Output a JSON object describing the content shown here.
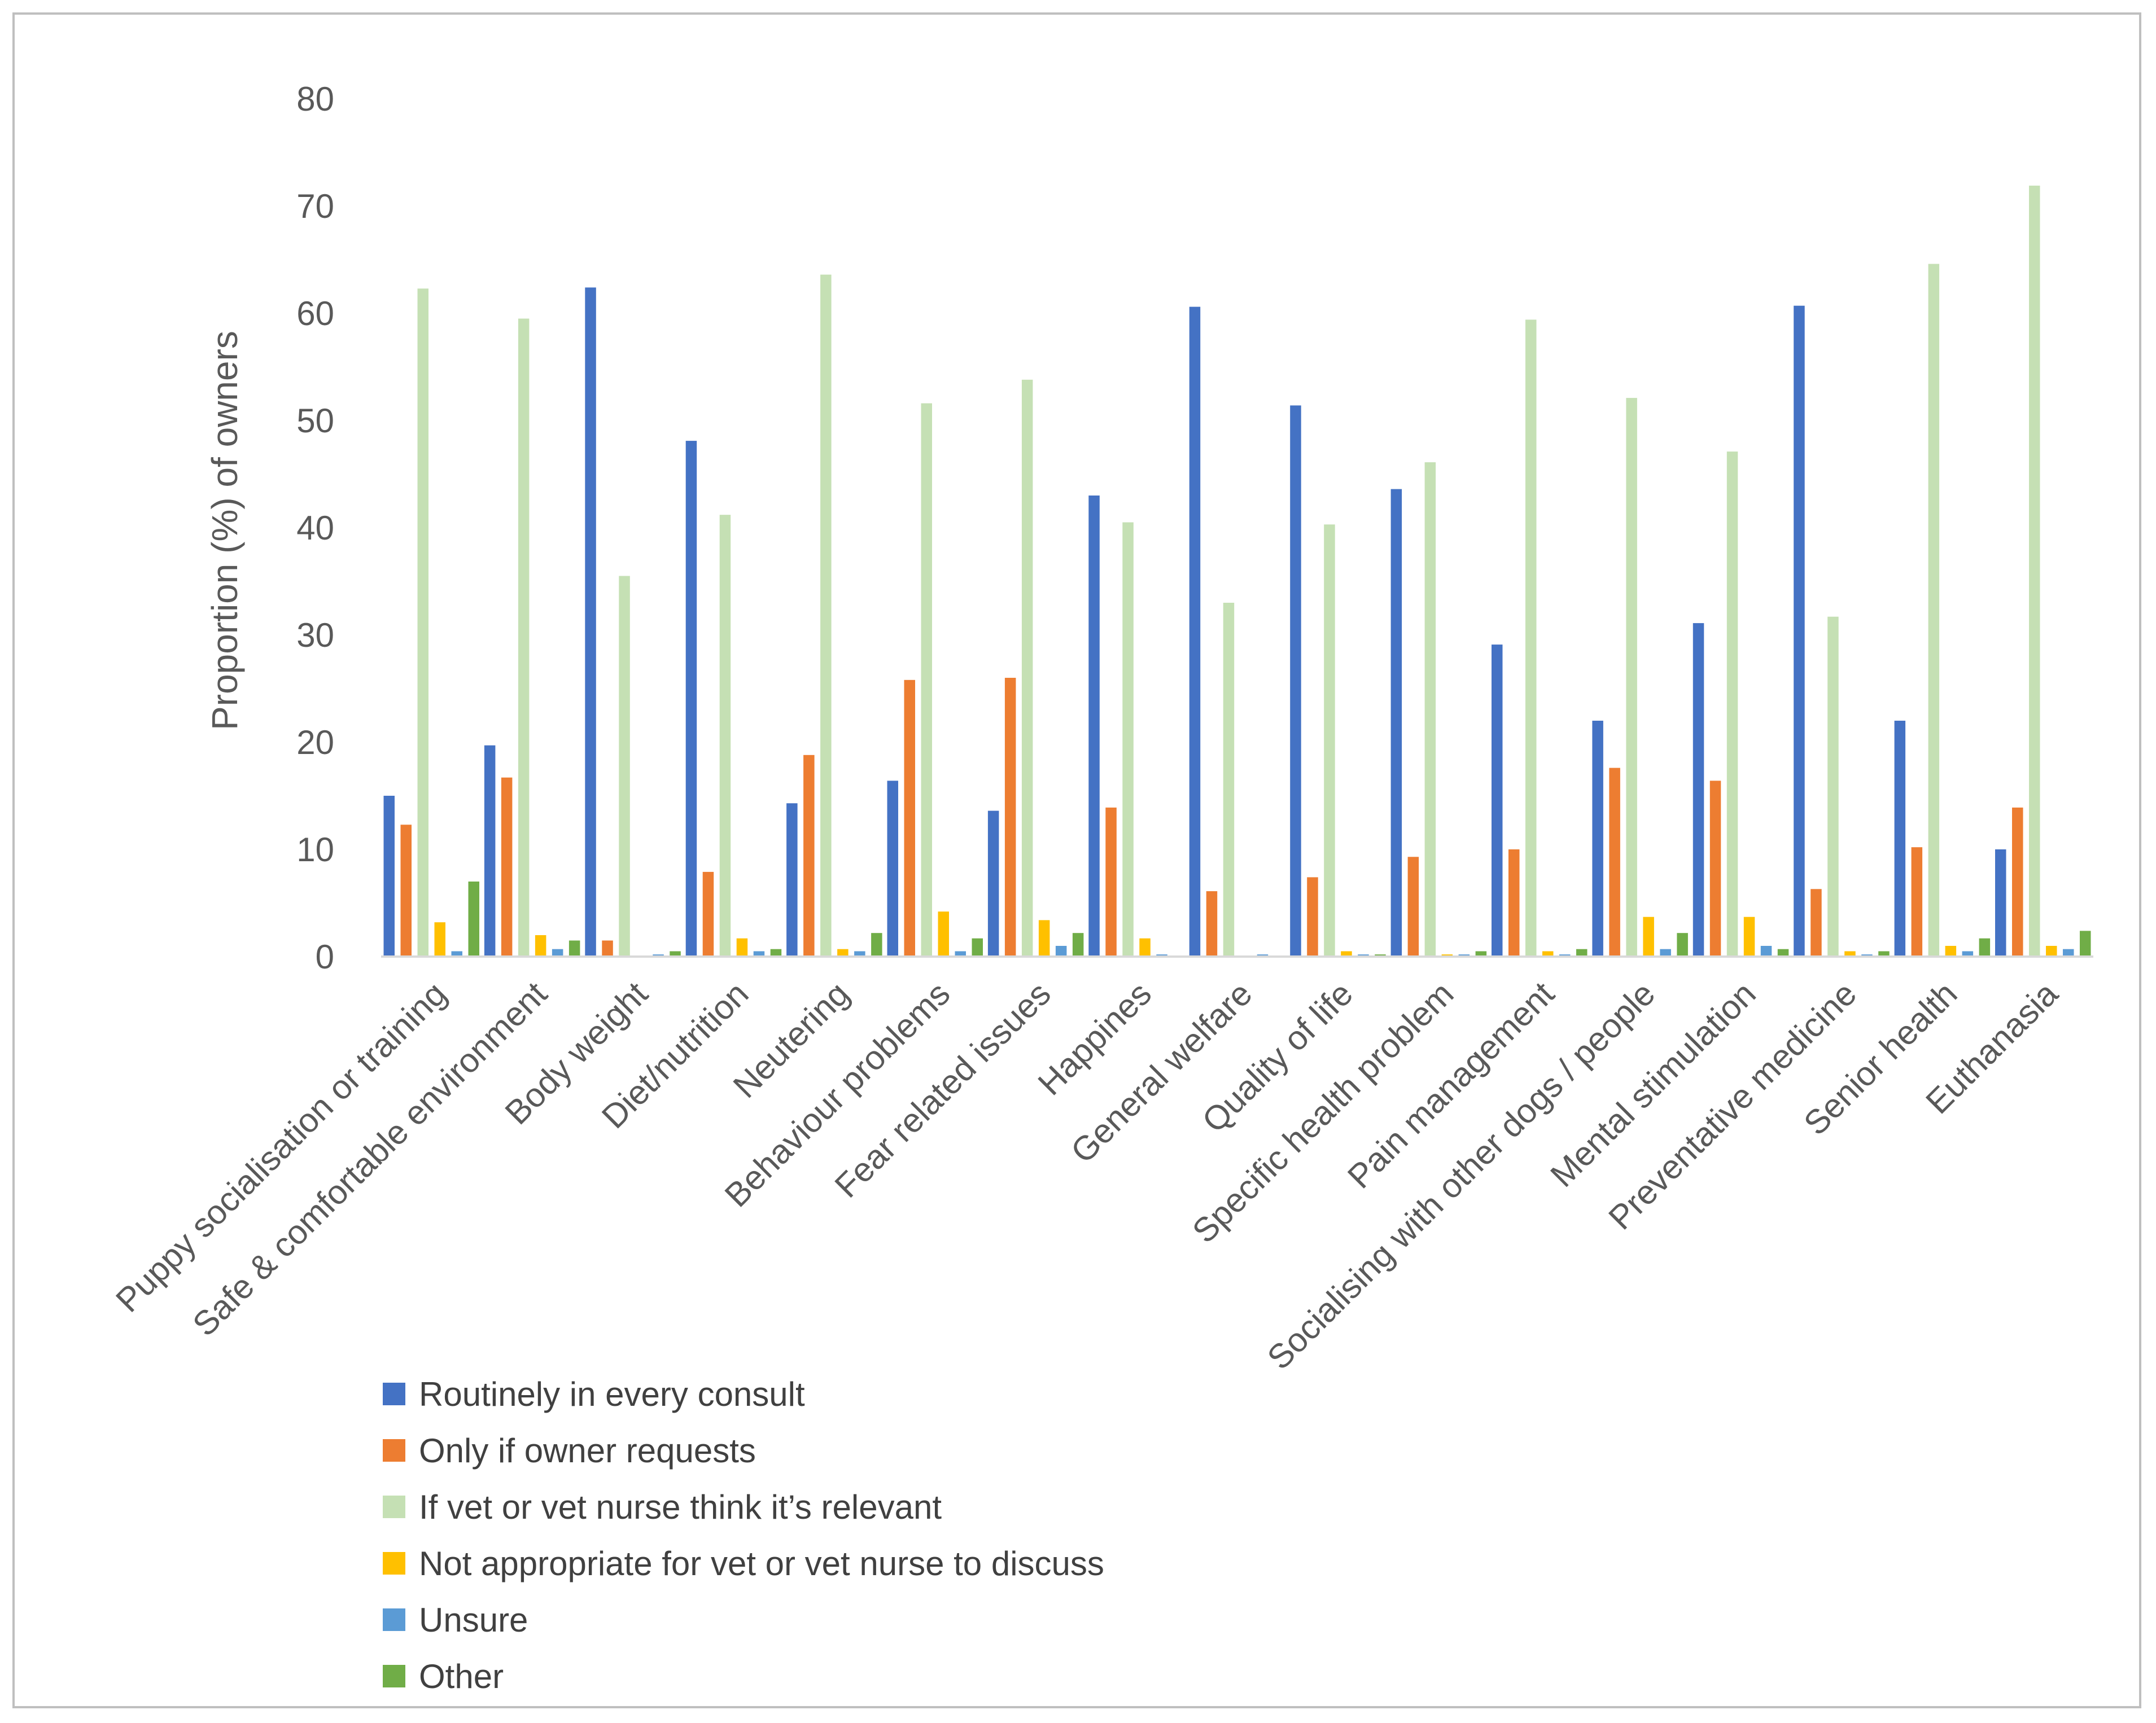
{
  "chart_data": {
    "type": "bar",
    "title": "",
    "xlabel": "",
    "ylabel": "Proportion (%) of owners",
    "ylim": [
      0,
      80
    ],
    "yticks": [
      0,
      10,
      20,
      30,
      40,
      50,
      60,
      70,
      80
    ],
    "grid": false,
    "legend_position": "bottom-left",
    "categories": [
      "Puppy socialisation or training",
      "Safe & comfortable environment",
      "Body weight",
      "Diet/nutrition",
      "Neutering",
      "Behaviour problems",
      "Fear related issues",
      "Happines",
      "General welfare",
      "Quality of life",
      "Specific health problem",
      "Pain management",
      "Socialising with other dogs / people",
      "Mental stimulation",
      "Preventative medicine",
      "Senior health",
      "Euthanasia"
    ],
    "series": [
      {
        "name": "Routinely in every consult",
        "color": "#4472C4",
        "values": [
          15.0,
          19.7,
          62.4,
          48.1,
          14.3,
          16.4,
          13.6,
          43.0,
          60.6,
          51.4,
          43.6,
          29.1,
          22.0,
          31.1,
          60.7,
          22.0,
          10.0
        ]
      },
      {
        "name": "Only if owner requests",
        "color": "#ED7D31",
        "values": [
          12.3,
          16.7,
          1.5,
          7.9,
          18.8,
          25.8,
          26.0,
          13.9,
          6.1,
          7.4,
          9.3,
          10.0,
          17.6,
          16.4,
          6.3,
          10.2,
          13.9
        ]
      },
      {
        "name": "If vet or vet nurse think it’s relevant",
        "color": "#C5E0B4",
        "values": [
          62.3,
          59.5,
          35.5,
          41.2,
          63.6,
          51.6,
          53.8,
          40.5,
          33.0,
          40.3,
          46.1,
          59.4,
          52.1,
          47.1,
          31.7,
          64.6,
          71.9
        ]
      },
      {
        "name": "Not appropriate for vet or vet nurse to discuss",
        "color": "#FFC000",
        "values": [
          3.2,
          2.0,
          0.0,
          1.7,
          0.7,
          4.2,
          3.4,
          1.7,
          0.0,
          0.5,
          0.2,
          0.5,
          3.7,
          3.7,
          0.5,
          1.0,
          1.0
        ]
      },
      {
        "name": "Unsure",
        "color": "#5B9BD5",
        "values": [
          0.5,
          0.7,
          0.2,
          0.5,
          0.5,
          0.5,
          1.0,
          0.2,
          0.2,
          0.2,
          0.2,
          0.2,
          0.7,
          1.0,
          0.2,
          0.5,
          0.7
        ]
      },
      {
        "name": "Other",
        "color": "#70AD47",
        "values": [
          7.0,
          1.5,
          0.5,
          0.7,
          2.2,
          1.7,
          2.2,
          0.0,
          0.0,
          0.2,
          0.5,
          0.7,
          2.2,
          0.7,
          0.5,
          1.7,
          2.4
        ]
      }
    ]
  }
}
